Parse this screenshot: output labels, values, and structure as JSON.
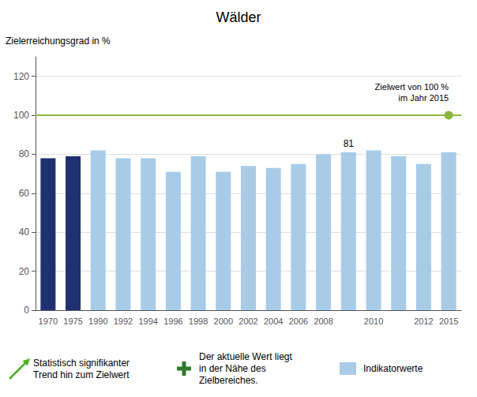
{
  "chart_data": {
    "type": "bar",
    "title": "Wälder",
    "ylabel": "Zielerreichungsgrad in %",
    "categories": [
      "1970",
      "1975",
      "1990",
      "1992",
      "1994",
      "1996",
      "1998",
      "2000",
      "2002",
      "2004",
      "2006",
      "2008",
      null,
      "2010",
      null,
      "2012",
      "2015"
    ],
    "values": [
      78,
      79,
      82,
      78,
      78,
      71,
      79,
      71,
      74,
      73,
      75,
      80,
      81,
      82,
      79,
      75,
      81
    ],
    "colors": [
      "#1f3170",
      "#1f3170",
      "#a8cce8",
      "#a8cce8",
      "#a8cce8",
      "#a8cce8",
      "#a8cce8",
      "#a8cce8",
      "#a8cce8",
      "#a8cce8",
      "#a8cce8",
      "#a8cce8",
      "#a8cce8",
      "#a8cce8",
      "#a8cce8",
      "#a8cce8",
      "#a8cce8"
    ],
    "ylim": [
      0,
      130
    ],
    "yticks": [
      0,
      20,
      40,
      60,
      80,
      100,
      120
    ],
    "grid": true,
    "annotations": [
      {
        "text": "81",
        "category_index": 12
      }
    ],
    "target": {
      "value": 100,
      "label": "Zielwert von 100 %\nim Jahr 2015",
      "color": "#8db63c",
      "marker_category": "2015"
    },
    "legend_entries": [
      {
        "marker": "arrow",
        "color": "#4caf27",
        "label": "Statistisch signifikanter\nTrend hin zum Zielwert"
      },
      {
        "marker": "plus",
        "color": "#2d7a2d",
        "label": "Der aktuelle Wert liegt\nin der Nähe des\nZielbereiches."
      },
      {
        "marker": "rect",
        "color": "#a8cce8",
        "label": "Indikatorwerte"
      }
    ]
  }
}
